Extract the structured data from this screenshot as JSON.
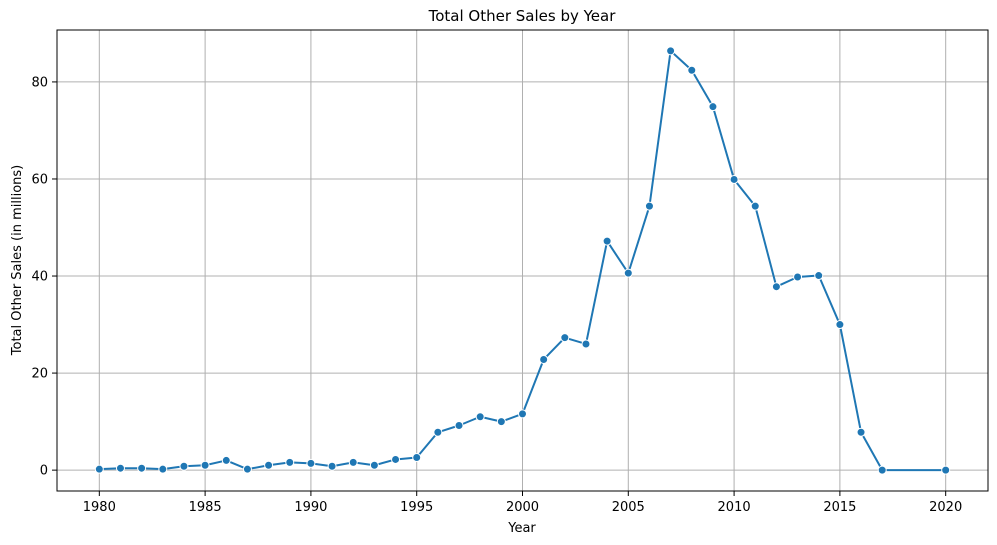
{
  "chart_data": {
    "type": "line",
    "title": "Total Other Sales by Year",
    "xlabel": "Year",
    "ylabel": "Total Other Sales (in millions)",
    "xlim": [
      1978,
      2022
    ],
    "ylim": [
      -4.3,
      90.7
    ],
    "x_ticks": [
      1980,
      1985,
      1990,
      1995,
      2000,
      2005,
      2010,
      2015,
      2020
    ],
    "y_ticks": [
      0,
      20,
      40,
      60,
      80
    ],
    "grid": true,
    "line_color": "#1f77b4",
    "marker": "circle",
    "series": [
      {
        "x": [
          1980,
          1981,
          1982,
          1983,
          1984,
          1985,
          1986,
          1987,
          1988,
          1989,
          1990,
          1991,
          1992,
          1993,
          1994,
          1995,
          1996,
          1997,
          1998,
          1999,
          2000,
          2001,
          2002,
          2003,
          2004,
          2005,
          2006,
          2007,
          2008,
          2009,
          2010,
          2011,
          2012,
          2013,
          2014,
          2015,
          2016,
          2017,
          2020
        ],
        "values": [
          0.2,
          0.4,
          0.4,
          0.2,
          0.8,
          1.0,
          2.0,
          0.2,
          1.0,
          1.6,
          1.4,
          0.8,
          1.6,
          1.0,
          2.2,
          2.6,
          7.8,
          9.2,
          11.0,
          10.0,
          11.6,
          22.8,
          27.3,
          26.0,
          47.2,
          40.6,
          54.4,
          86.4,
          82.4,
          74.9,
          59.9,
          54.4,
          37.8,
          39.8,
          40.1,
          30.0,
          7.8,
          0.0,
          0.0
        ]
      }
    ]
  }
}
